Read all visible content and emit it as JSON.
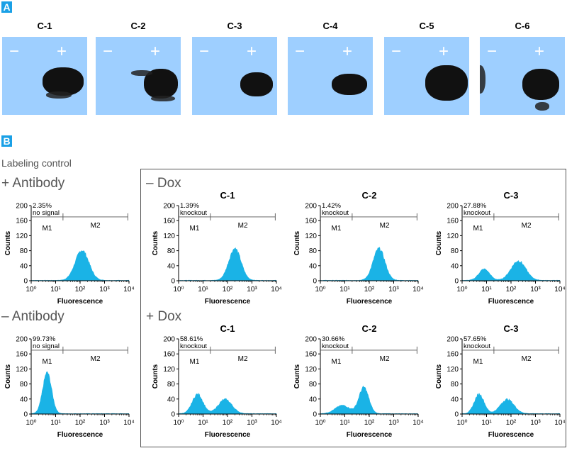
{
  "panel_a": {
    "letter": "A",
    "lanes": [
      {
        "title": "C-1",
        "minus": "−",
        "plus": "+"
      },
      {
        "title": "C-2",
        "minus": "−",
        "plus": "+"
      },
      {
        "title": "C-3",
        "minus": "−",
        "plus": "+"
      },
      {
        "title": "C-4",
        "minus": "−",
        "plus": "+"
      },
      {
        "title": "C-5",
        "minus": "−",
        "plus": "+"
      },
      {
        "title": "C-6",
        "minus": "−",
        "plus": "+"
      }
    ]
  },
  "panel_b": {
    "letter": "B",
    "labeling_control": "Labeling control",
    "plus_antibody": "+ Antibody",
    "minus_antibody": "– Antibody",
    "minus_dox": "– Dox",
    "plus_dox": "+ Dox"
  },
  "colors": {
    "blot_bg": "#9ecfff",
    "histogram": "#1ab3e6",
    "panel_letter": "#1aa0e6"
  },
  "chart_data": [
    {
      "id": "plus-antibody",
      "type": "area",
      "title": "",
      "xlabel": "Fluorescence",
      "ylabel": "Counts",
      "xscale": "log",
      "xlim": [
        1,
        10000
      ],
      "ylim": [
        0,
        200
      ],
      "yticks": [
        0,
        40,
        80,
        120,
        160,
        200
      ],
      "xticks": [
        "10⁰",
        "10¹",
        "10²",
        "10³",
        "10⁴"
      ],
      "gates": [
        {
          "name": "M1",
          "range": [
            1,
            20
          ]
        },
        {
          "name": "M2",
          "range": [
            20,
            10000
          ]
        }
      ],
      "annotation": [
        "2.35%",
        "no signal"
      ],
      "peaks": [
        {
          "x": 120,
          "height": 80,
          "width": 0.28
        }
      ]
    },
    {
      "id": "minus-antibody",
      "type": "area",
      "title": "",
      "xlabel": "Fluorescence",
      "ylabel": "Counts",
      "xscale": "log",
      "xlim": [
        1,
        10000
      ],
      "ylim": [
        0,
        200
      ],
      "yticks": [
        0,
        40,
        80,
        120,
        160,
        200
      ],
      "xticks": [
        "10⁰",
        "10¹",
        "10²",
        "10³",
        "10⁴"
      ],
      "gates": [
        {
          "name": "M1",
          "range": [
            1,
            20
          ]
        },
        {
          "name": "M2",
          "range": [
            20,
            10000
          ]
        }
      ],
      "annotation": [
        "99.73%",
        "no signal"
      ],
      "peaks": [
        {
          "x": 4.5,
          "height": 110,
          "width": 0.18
        }
      ]
    },
    {
      "id": "minus-dox-c1",
      "type": "area",
      "title": "C-1",
      "xlabel": "Fluorescence",
      "ylabel": "Counts",
      "xscale": "log",
      "xlim": [
        1,
        10000
      ],
      "ylim": [
        0,
        200
      ],
      "yticks": [
        0,
        40,
        80,
        120,
        160,
        200
      ],
      "xticks": [
        "10⁰",
        "10¹",
        "10²",
        "10³",
        "10⁴"
      ],
      "gates": [
        {
          "name": "M1",
          "range": [
            1,
            20
          ]
        },
        {
          "name": "M2",
          "range": [
            20,
            10000
          ]
        }
      ],
      "annotation": [
        "1.39%",
        "knockout"
      ],
      "peaks": [
        {
          "x": 200,
          "height": 85,
          "width": 0.25
        }
      ]
    },
    {
      "id": "minus-dox-c2",
      "type": "area",
      "title": "C-2",
      "xlabel": "Fluorescence",
      "ylabel": "Counts",
      "xscale": "log",
      "xlim": [
        1,
        10000
      ],
      "ylim": [
        0,
        200
      ],
      "yticks": [
        0,
        40,
        80,
        120,
        160,
        200
      ],
      "xticks": [
        "10⁰",
        "10¹",
        "10²",
        "10³",
        "10⁴"
      ],
      "gates": [
        {
          "name": "M1",
          "range": [
            1,
            20
          ]
        },
        {
          "name": "M2",
          "range": [
            20,
            10000
          ]
        }
      ],
      "annotation": [
        "1.42%",
        "knockout"
      ],
      "peaks": [
        {
          "x": 250,
          "height": 85,
          "width": 0.24
        }
      ]
    },
    {
      "id": "minus-dox-c3",
      "type": "area",
      "title": "C-3",
      "xlabel": "Fluorescence",
      "ylabel": "Counts",
      "xscale": "log",
      "xlim": [
        1,
        10000
      ],
      "ylim": [
        0,
        200
      ],
      "yticks": [
        0,
        40,
        80,
        120,
        160,
        200
      ],
      "xticks": [
        "10⁰",
        "10¹",
        "10²",
        "10³",
        "10⁴"
      ],
      "gates": [
        {
          "name": "M1",
          "range": [
            1,
            20
          ]
        },
        {
          "name": "M2",
          "range": [
            20,
            10000
          ]
        }
      ],
      "annotation": [
        "27.88%",
        "knockout"
      ],
      "peaks": [
        {
          "x": 8,
          "height": 30,
          "width": 0.22
        },
        {
          "x": 200,
          "height": 52,
          "width": 0.3
        }
      ]
    },
    {
      "id": "plus-dox-c1",
      "type": "area",
      "title": "C-1",
      "xlabel": "Fluorescence",
      "ylabel": "Counts",
      "xscale": "log",
      "xlim": [
        1,
        10000
      ],
      "ylim": [
        0,
        200
      ],
      "yticks": [
        0,
        40,
        80,
        120,
        160,
        200
      ],
      "xticks": [
        "10⁰",
        "10¹",
        "10²",
        "10³",
        "10⁴"
      ],
      "gates": [
        {
          "name": "M1",
          "range": [
            1,
            20
          ]
        },
        {
          "name": "M2",
          "range": [
            20,
            10000
          ]
        }
      ],
      "annotation": [
        "58.61%",
        "knockout"
      ],
      "peaks": [
        {
          "x": 6,
          "height": 52,
          "width": 0.22
        },
        {
          "x": 80,
          "height": 38,
          "width": 0.28
        }
      ]
    },
    {
      "id": "plus-dox-c2",
      "type": "area",
      "title": "C-2",
      "xlabel": "Fluorescence",
      "ylabel": "Counts",
      "xscale": "log",
      "xlim": [
        1,
        10000
      ],
      "ylim": [
        0,
        200
      ],
      "yticks": [
        0,
        40,
        80,
        120,
        160,
        200
      ],
      "xticks": [
        "10⁰",
        "10¹",
        "10²",
        "10³",
        "10⁴"
      ],
      "gates": [
        {
          "name": "M1",
          "range": [
            1,
            20
          ]
        },
        {
          "name": "M2",
          "range": [
            20,
            10000
          ]
        }
      ],
      "annotation": [
        "30.66%",
        "knockout"
      ],
      "peaks": [
        {
          "x": 8,
          "height": 22,
          "width": 0.3
        },
        {
          "x": 60,
          "height": 70,
          "width": 0.2
        }
      ]
    },
    {
      "id": "plus-dox-c3",
      "type": "area",
      "title": "C-3",
      "xlabel": "Fluorescence",
      "ylabel": "Counts",
      "xscale": "log",
      "xlim": [
        1,
        10000
      ],
      "ylim": [
        0,
        200
      ],
      "yticks": [
        0,
        40,
        80,
        120,
        160,
        200
      ],
      "xticks": [
        "10⁰",
        "10¹",
        "10²",
        "10³",
        "10⁴"
      ],
      "gates": [
        {
          "name": "M1",
          "range": [
            1,
            20
          ]
        },
        {
          "name": "M2",
          "range": [
            20,
            10000
          ]
        }
      ],
      "annotation": [
        "57.65%",
        "knockout"
      ],
      "peaks": [
        {
          "x": 5,
          "height": 52,
          "width": 0.2
        },
        {
          "x": 70,
          "height": 38,
          "width": 0.28
        }
      ]
    }
  ]
}
